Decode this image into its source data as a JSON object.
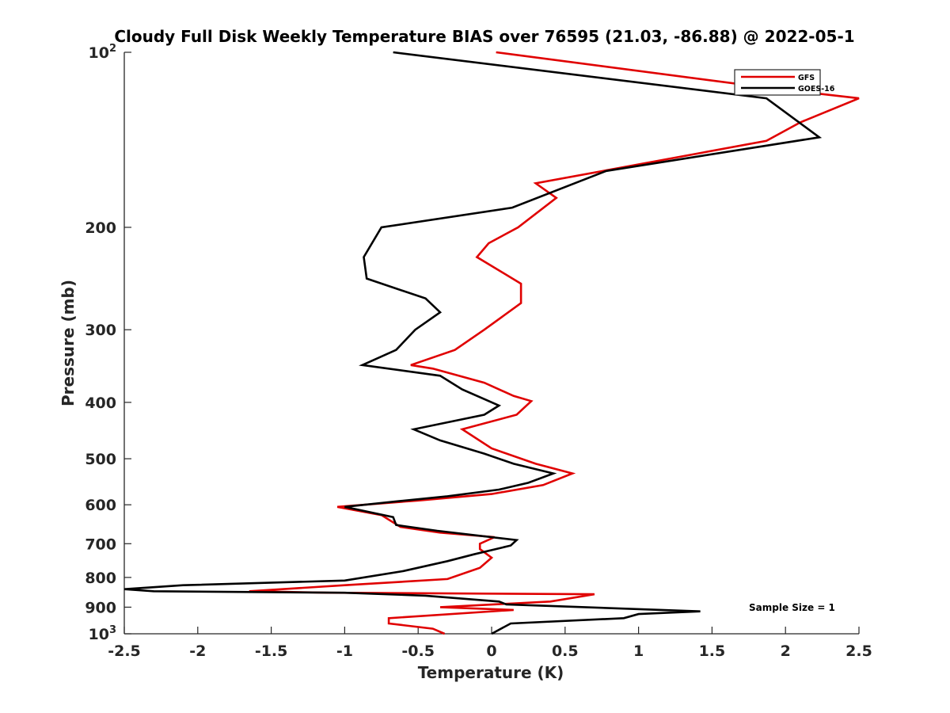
{
  "chart_data": {
    "type": "line",
    "title": "Cloudy Full Disk Weekly Temperature BIAS over 76595 (21.03, -86.88) @ 2022-05-1",
    "xlabel": "Temperature (K)",
    "ylabel": "Pressure (mb)",
    "xlim": [
      -2.5,
      2.5
    ],
    "ylim": [
      100,
      1000
    ],
    "yscale": "log",
    "xticks": [
      -2.5,
      -2,
      -1.5,
      -1,
      -0.5,
      0,
      0.5,
      1,
      1.5,
      2,
      2.5
    ],
    "xtick_labels": [
      "-2.5",
      "-2",
      "-1.5",
      "-1",
      "-0.5",
      "0",
      "0.5",
      "1",
      "1.5",
      "2",
      "2.5"
    ],
    "yticks": [
      {
        "value": 100,
        "base": "10",
        "exp": "2"
      },
      {
        "value": 200,
        "label": "200"
      },
      {
        "value": 300,
        "label": "300"
      },
      {
        "value": 400,
        "label": "400"
      },
      {
        "value": 500,
        "label": "500"
      },
      {
        "value": 600,
        "label": "600"
      },
      {
        "value": 700,
        "label": "700"
      },
      {
        "value": 800,
        "label": "800"
      },
      {
        "value": 900,
        "label": "900"
      },
      {
        "value": 1000,
        "base": "10",
        "exp": "3"
      }
    ],
    "legend": {
      "position": "top-right",
      "entries": [
        "GFS",
        "GOES-16"
      ]
    },
    "annotation": "Sample Size = 1",
    "series": [
      {
        "name": "GFS",
        "color": "#e00000",
        "points": [
          [
            0.03,
            100
          ],
          [
            1.87,
            115
          ],
          [
            2.5,
            120
          ],
          [
            2.1,
            132
          ],
          [
            1.87,
            142
          ],
          [
            0.3,
            168
          ],
          [
            0.44,
            178
          ],
          [
            0.18,
            200
          ],
          [
            -0.02,
            213
          ],
          [
            -0.1,
            225
          ],
          [
            0.2,
            250
          ],
          [
            0.2,
            270
          ],
          [
            -0.05,
            300
          ],
          [
            -0.25,
            325
          ],
          [
            -0.55,
            345
          ],
          [
            -0.4,
            350
          ],
          [
            -0.05,
            370
          ],
          [
            0.15,
            390
          ],
          [
            0.27,
            398
          ],
          [
            0.17,
            420
          ],
          [
            -0.2,
            445
          ],
          [
            0.0,
            480
          ],
          [
            0.3,
            510
          ],
          [
            0.55,
            530
          ],
          [
            0.35,
            555
          ],
          [
            0.0,
            575
          ],
          [
            -0.5,
            590
          ],
          [
            -1.05,
            605
          ],
          [
            -0.75,
            625
          ],
          [
            -0.62,
            655
          ],
          [
            -0.35,
            670
          ],
          [
            0.02,
            682
          ],
          [
            -0.08,
            700
          ],
          [
            -0.08,
            715
          ],
          [
            0.0,
            740
          ],
          [
            -0.08,
            770
          ],
          [
            -0.3,
            805
          ],
          [
            -1.0,
            825
          ],
          [
            -1.65,
            845
          ],
          [
            -1.1,
            850
          ],
          [
            0.7,
            855
          ],
          [
            0.4,
            880
          ],
          [
            -0.35,
            900
          ],
          [
            0.15,
            910
          ],
          [
            -0.7,
            940
          ],
          [
            -0.7,
            960
          ],
          [
            -0.4,
            980
          ],
          [
            -0.32,
            1000
          ]
        ]
      },
      {
        "name": "GOES-16",
        "color": "#000000",
        "points": [
          [
            -0.67,
            100
          ],
          [
            1.87,
            120
          ],
          [
            2.23,
            140
          ],
          [
            0.78,
            160
          ],
          [
            0.14,
            185
          ],
          [
            -0.75,
            200
          ],
          [
            -0.87,
            225
          ],
          [
            -0.85,
            245
          ],
          [
            -0.45,
            265
          ],
          [
            -0.35,
            280
          ],
          [
            -0.52,
            300
          ],
          [
            -0.65,
            325
          ],
          [
            -0.88,
            345
          ],
          [
            -0.35,
            360
          ],
          [
            -0.2,
            380
          ],
          [
            0.05,
            405
          ],
          [
            -0.05,
            420
          ],
          [
            -0.53,
            445
          ],
          [
            -0.35,
            465
          ],
          [
            -0.05,
            490
          ],
          [
            0.15,
            510
          ],
          [
            0.42,
            530
          ],
          [
            0.25,
            550
          ],
          [
            0.05,
            565
          ],
          [
            -0.3,
            580
          ],
          [
            -0.65,
            592
          ],
          [
            -1.0,
            605
          ],
          [
            -0.67,
            630
          ],
          [
            -0.65,
            650
          ],
          [
            -0.37,
            665
          ],
          [
            0.17,
            690
          ],
          [
            0.13,
            705
          ],
          [
            -0.12,
            730
          ],
          [
            -0.3,
            750
          ],
          [
            -0.6,
            780
          ],
          [
            -1.0,
            810
          ],
          [
            -2.1,
            825
          ],
          [
            -2.5,
            838
          ],
          [
            -2.3,
            845
          ],
          [
            -1.0,
            850
          ],
          [
            -0.45,
            860
          ],
          [
            0.05,
            880
          ],
          [
            0.1,
            890
          ],
          [
            1.42,
            915
          ],
          [
            1.0,
            925
          ],
          [
            0.9,
            940
          ],
          [
            0.13,
            960
          ],
          [
            0.0,
            1000
          ]
        ]
      }
    ]
  }
}
